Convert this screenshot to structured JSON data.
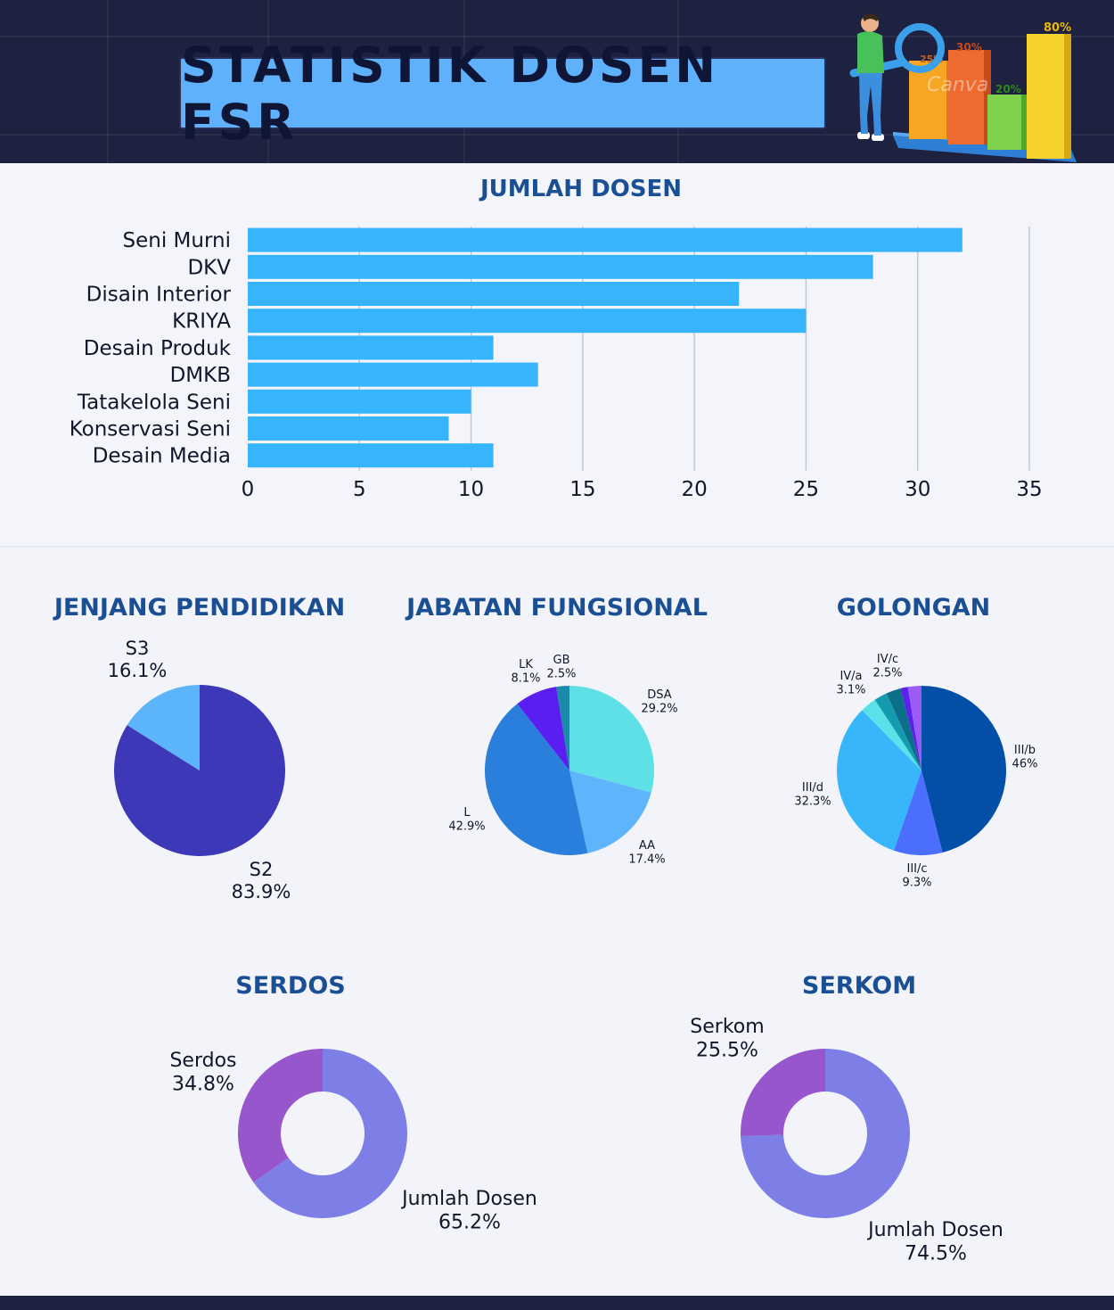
{
  "header": {
    "title": "STATISTIK DOSEN FSR",
    "illustration": {
      "bar_labels": [
        "25%",
        "30%",
        "20%",
        "80%"
      ],
      "watermark": "Canva"
    }
  },
  "colors": {
    "header_bg": "#1e2140",
    "title_box": "#5fb1fb",
    "section_title": "#1b4f94",
    "bar": "#37b5fc"
  },
  "sections": {
    "jumlah_dosen": "JUMLAH DOSEN",
    "jenjang": "JENJANG PENDIDIKAN",
    "jabatan": "JABATAN FUNGSIONAL",
    "golongan": "GOLONGAN",
    "serdos": "SERDOS",
    "serkom": "SERKOM"
  },
  "chart_data": [
    {
      "id": "jumlah",
      "type": "bar",
      "orientation": "horizontal",
      "title": "JUMLAH DOSEN",
      "categories": [
        "Seni Murni",
        "DKV",
        "Disain Interior",
        "KRIYA",
        "Desain Produk",
        "DMKB",
        "Tatakelola Seni",
        "Konservasi Seni",
        "Desain Media"
      ],
      "values": [
        32,
        28,
        22,
        25,
        11,
        13,
        10,
        9,
        11
      ],
      "xlim": [
        0,
        35
      ],
      "xticks": [
        "0",
        "5",
        "10",
        "15",
        "20",
        "25",
        "30",
        "35"
      ],
      "grid": true,
      "color": "#37b5fc"
    },
    {
      "id": "jenjang",
      "type": "pie",
      "title": "JENJANG PENDIDIKAN",
      "slices": [
        {
          "name": "S2",
          "pct": "83.9%",
          "value": 83.9,
          "color": "#3d38b8"
        },
        {
          "name": "S3",
          "pct": "16.1%",
          "value": 16.1,
          "color": "#5cb4fb"
        }
      ]
    },
    {
      "id": "jabatan",
      "type": "pie",
      "title": "JABATAN FUNGSIONAL",
      "slices": [
        {
          "name": "DSA",
          "pct": "29.2%",
          "value": 29.2,
          "color": "#5fe0e6"
        },
        {
          "name": "AA",
          "pct": "17.4%",
          "value": 17.4,
          "color": "#5fb5fb"
        },
        {
          "name": "L",
          "pct": "42.9%",
          "value": 42.9,
          "color": "#2b7fdc"
        },
        {
          "name": "LK",
          "pct": "8.1%",
          "value": 8.1,
          "color": "#5b1ef0"
        },
        {
          "name": "GB",
          "pct": "2.5%",
          "value": 2.5,
          "color": "#1b8aa8"
        }
      ]
    },
    {
      "id": "golongan",
      "type": "pie",
      "title": "GOLONGAN",
      "slices": [
        {
          "name": "III/b",
          "pct": "46%",
          "value": 46,
          "color": "#034ea7"
        },
        {
          "name": "III/c",
          "pct": "9.3%",
          "value": 9.3,
          "color": "#4c6efc"
        },
        {
          "name": "III/d",
          "pct": "32.3%",
          "value": 32.3,
          "color": "#38b6fc"
        },
        {
          "name": "IV/a",
          "pct": "3.1%",
          "value": 3.1,
          "color": "#5be1ea"
        },
        {
          "name": "IV/c",
          "pct": "2.5%",
          "value": 2.5,
          "color": "#159bb0"
        },
        {
          "name": "",
          "pct": "",
          "value": 2.8,
          "color": "#0b6f8a"
        },
        {
          "name": "",
          "pct": "",
          "value": 1.4,
          "color": "#5b22ec"
        },
        {
          "name": "",
          "pct": "",
          "value": 2.6,
          "color": "#9a5cf5"
        }
      ]
    },
    {
      "id": "serdos",
      "type": "donut",
      "title": "SERDOS",
      "slices": [
        {
          "name": "Jumlah Dosen",
          "pct": "65.2%",
          "value": 65.2,
          "color": "#7e7fe6"
        },
        {
          "name": "Serdos",
          "pct": "34.8%",
          "value": 34.8,
          "color": "#9756cc"
        }
      ]
    },
    {
      "id": "serkom",
      "type": "donut",
      "title": "SERKOM",
      "slices": [
        {
          "name": "Jumlah Dosen",
          "pct": "74.5%",
          "value": 74.5,
          "color": "#7e7fe6"
        },
        {
          "name": "Serkom",
          "pct": "25.5%",
          "value": 25.5,
          "color": "#9756cc"
        }
      ]
    }
  ]
}
